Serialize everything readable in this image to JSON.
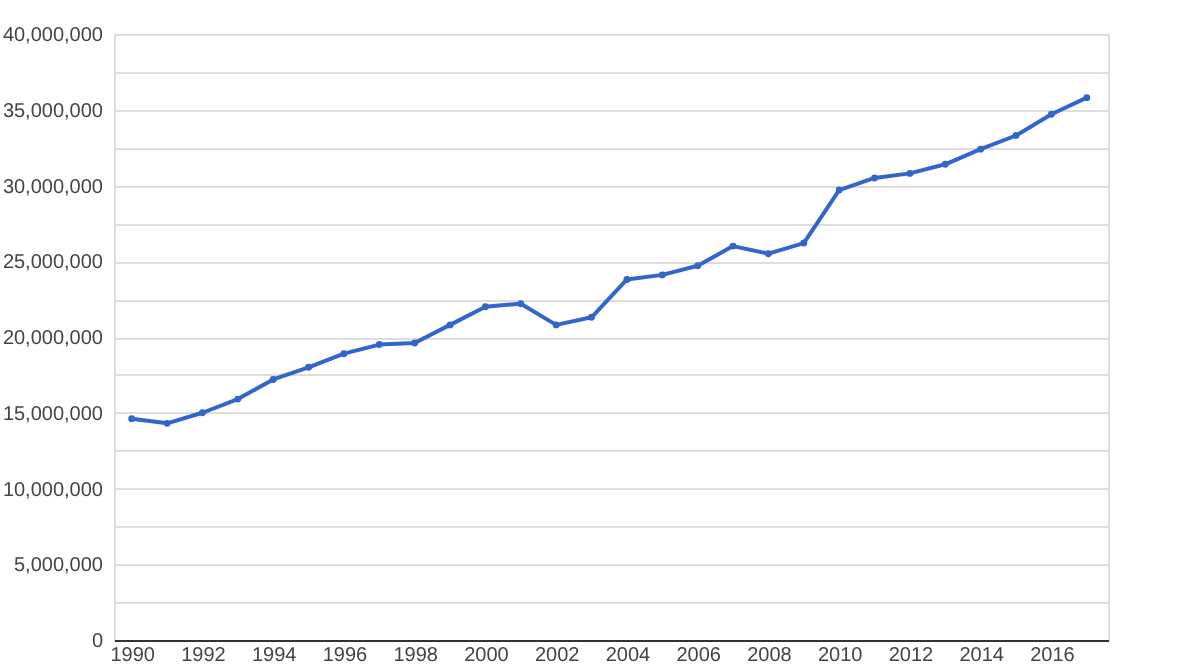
{
  "chart_data": {
    "type": "line",
    "x": [
      1990,
      1991,
      1992,
      1993,
      1994,
      1995,
      1996,
      1997,
      1998,
      1999,
      2000,
      2001,
      2002,
      2003,
      2004,
      2005,
      2006,
      2007,
      2008,
      2009,
      2010,
      2011,
      2012,
      2013,
      2014,
      2015,
      2016,
      2017
    ],
    "series": [
      {
        "color": "#3366cc",
        "values": [
          14600000,
          14300000,
          15000000,
          15900000,
          17200000,
          18000000,
          18900000,
          19500000,
          19600000,
          20800000,
          22000000,
          22200000,
          20800000,
          21300000,
          23800000,
          24100000,
          24700000,
          26000000,
          25500000,
          26200000,
          29700000,
          30500000,
          30800000,
          31400000,
          32400000,
          33300000,
          34700000,
          35800000
        ]
      }
    ],
    "xlim": [
      1989.5,
      2017.6
    ],
    "xticks": [
      1990,
      1992,
      1994,
      1996,
      1998,
      2000,
      2002,
      2004,
      2006,
      2008,
      2010,
      2012,
      2014,
      2016
    ],
    "ylim": [
      0,
      40000000
    ],
    "yticks": [
      0,
      {
        "value": 2500000,
        "label": null
      },
      {
        "value": 5000000,
        "label": "5,000,000"
      },
      {
        "value": 7500000,
        "label": null
      },
      {
        "value": 10000000,
        "label": "10,000,000"
      },
      {
        "value": 12500000,
        "label": null
      },
      {
        "value": 15000000,
        "label": "15,000,000"
      },
      {
        "value": 17500000,
        "label": null
      },
      {
        "value": 20000000,
        "label": "20,000,000"
      },
      {
        "value": 22500000,
        "label": null
      },
      {
        "value": 25000000,
        "label": "25,000,000"
      },
      {
        "value": 27500000,
        "label": null
      },
      {
        "value": 30000000,
        "label": "30,000,000"
      },
      {
        "value": 32500000,
        "label": null
      },
      {
        "value": 35000000,
        "label": "35,000,000"
      },
      {
        "value": 37500000,
        "label": null
      },
      {
        "value": 40000000,
        "label": "40,000,000"
      }
    ],
    "grid": "y",
    "marker": "circle",
    "line_style": "solid"
  }
}
